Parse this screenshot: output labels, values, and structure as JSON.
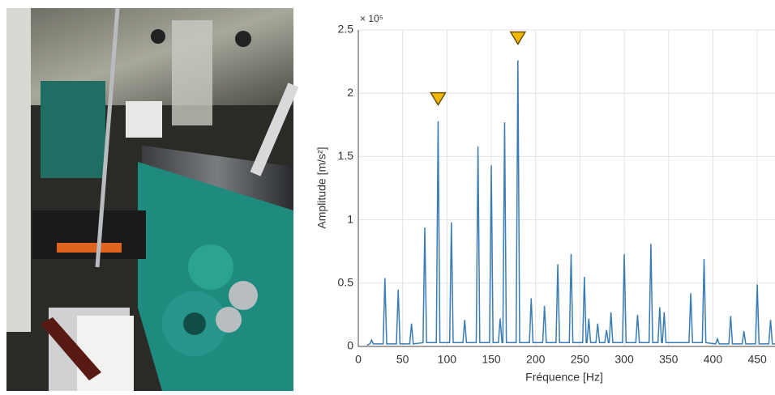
{
  "chart_data": {
    "type": "line",
    "x_label": "Fréquence [Hz]",
    "y_label": "Amplitude [m/s²]",
    "y_multiplier": "× 10⁵",
    "xlim": [
      0,
      470
    ],
    "ylim": [
      0,
      2.5
    ],
    "xticks": [
      0,
      50,
      100,
      150,
      200,
      250,
      300,
      350,
      400,
      450
    ],
    "yticks": [
      0,
      0.5,
      1,
      1.5,
      2,
      2.5
    ],
    "grid": true,
    "x": [
      10,
      13,
      15,
      17,
      28,
      30,
      32,
      43,
      45,
      47,
      58,
      60,
      62,
      73,
      75,
      77,
      88,
      90,
      92,
      103,
      105,
      107,
      118,
      120,
      122,
      133,
      135,
      137,
      148,
      150,
      152,
      158,
      160,
      162,
      163,
      165,
      167,
      178,
      180,
      182,
      193,
      195,
      197,
      208,
      210,
      212,
      223,
      225,
      227,
      238,
      240,
      242,
      253,
      255,
      257,
      258,
      260,
      262,
      268,
      270,
      272,
      278,
      280,
      282,
      283,
      285,
      287,
      298,
      300,
      302,
      313,
      315,
      317,
      328,
      330,
      332,
      338,
      340,
      342,
      343,
      345,
      347,
      373,
      375,
      377,
      388,
      390,
      392,
      403,
      405,
      407,
      418,
      420,
      422,
      433,
      435,
      437,
      448,
      450,
      452,
      463,
      465,
      467,
      470
    ],
    "series": [
      {
        "color": "#3a7db4",
        "values": [
          0.01,
          0.02,
          0.05,
          0.02,
          0.02,
          0.54,
          0.02,
          0.02,
          0.45,
          0.02,
          0.02,
          0.18,
          0.02,
          0.03,
          0.94,
          0.03,
          0.03,
          1.78,
          0.03,
          0.03,
          0.98,
          0.03,
          0.03,
          0.21,
          0.03,
          0.03,
          1.58,
          0.03,
          0.03,
          1.43,
          0.03,
          0.03,
          0.22,
          0.03,
          0.03,
          1.77,
          0.03,
          0.03,
          2.26,
          0.03,
          0.03,
          0.38,
          0.03,
          0.03,
          0.32,
          0.03,
          0.03,
          0.65,
          0.03,
          0.03,
          0.73,
          0.03,
          0.03,
          0.55,
          0.03,
          0.03,
          0.22,
          0.03,
          0.03,
          0.18,
          0.03,
          0.03,
          0.13,
          0.03,
          0.03,
          0.27,
          0.03,
          0.03,
          0.73,
          0.03,
          0.03,
          0.25,
          0.03,
          0.03,
          0.81,
          0.03,
          0.03,
          0.31,
          0.03,
          0.03,
          0.27,
          0.03,
          0.03,
          0.42,
          0.03,
          0.03,
          0.69,
          0.03,
          0.02,
          0.06,
          0.02,
          0.02,
          0.24,
          0.02,
          0.02,
          0.12,
          0.02,
          0.02,
          0.49,
          0.02,
          0.02,
          0.21,
          0.02,
          0.02
        ]
      }
    ],
    "markers": {
      "x": [
        90,
        180
      ],
      "values": [
        1.78,
        2.26
      ],
      "color": "#f2b705"
    }
  }
}
